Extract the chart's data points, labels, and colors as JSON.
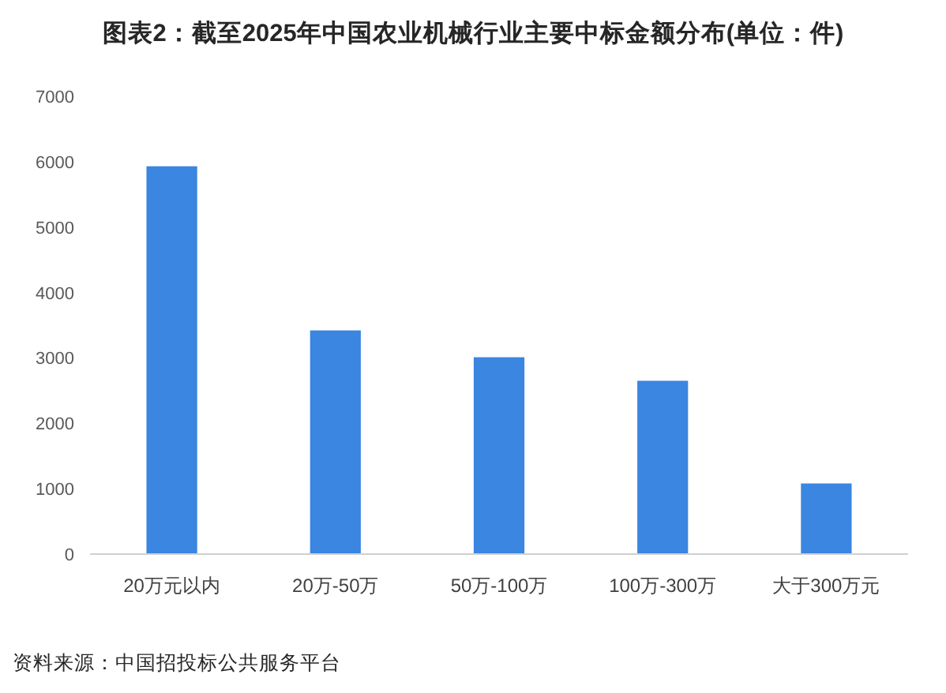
{
  "chart_data": {
    "type": "bar",
    "title": "图表2：截至2025年中国农业机械行业主要中标金额分布(单位：件)",
    "categories": [
      "20万元以内",
      "20万-50万",
      "50万-100万",
      "100万-300万",
      "大于300万元"
    ],
    "values": [
      5930,
      3420,
      3010,
      2650,
      1080
    ],
    "color": "#3a86e0",
    "ylim": [
      0,
      7000
    ],
    "yticks": [
      0,
      1000,
      2000,
      3000,
      4000,
      5000,
      6000,
      7000
    ],
    "annotations": [
      "资料来源：中国招投标公共服务平台"
    ]
  }
}
